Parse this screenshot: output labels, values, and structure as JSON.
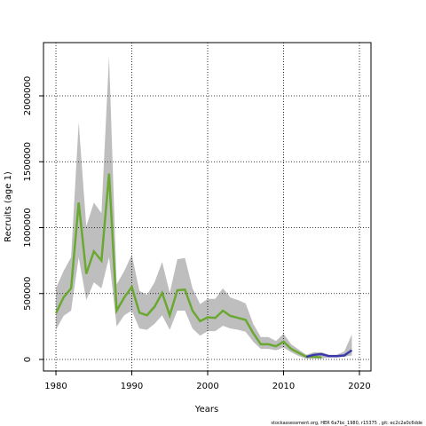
{
  "chart_data": {
    "type": "line",
    "xlabel": "Years",
    "ylabel": "Recruits (age 1)",
    "footnote": "stockassessment.org, HER 6a7bc_1980, r15375 , git: ec2c2a0c6dde",
    "x": [
      1980,
      1981,
      1982,
      1983,
      1984,
      1985,
      1986,
      1987,
      1988,
      1989,
      1990,
      1991,
      1992,
      1993,
      1994,
      1995,
      1996,
      1997,
      1998,
      1999,
      2000,
      2001,
      2002,
      2003,
      2004,
      2005,
      2006,
      2007,
      2008,
      2009,
      2010,
      2011,
      2012,
      2013,
      2014,
      2015,
      2016,
      2017,
      2018,
      2019
    ],
    "band": {
      "color": "#bebebe",
      "upper": [
        540000,
        670000,
        775000,
        1800000,
        1010000,
        1190000,
        1110000,
        2300000,
        570000,
        670000,
        795000,
        520000,
        490000,
        585000,
        740000,
        505000,
        760000,
        770000,
        540000,
        420000,
        460000,
        460000,
        540000,
        470000,
        450000,
        425000,
        270000,
        170000,
        170000,
        140000,
        195000,
        115000,
        75000,
        35000,
        55000,
        55000,
        35000,
        35000,
        60000,
        190000
      ],
      "lower": [
        225000,
        330000,
        370000,
        775000,
        450000,
        585000,
        540000,
        775000,
        250000,
        335000,
        370000,
        235000,
        225000,
        270000,
        335000,
        225000,
        370000,
        370000,
        235000,
        180000,
        215000,
        215000,
        255000,
        235000,
        225000,
        210000,
        135000,
        80000,
        80000,
        70000,
        90000,
        55000,
        25000,
        7000,
        7000,
        7000,
        15000,
        15000,
        20000,
        30000
      ]
    },
    "series": [
      {
        "color": "#6aa832",
        "values": [
          350000,
          470000,
          540000,
          1190000,
          650000,
          820000,
          750000,
          1410000,
          370000,
          470000,
          550000,
          355000,
          335000,
          400000,
          505000,
          335000,
          525000,
          530000,
          370000,
          290000,
          320000,
          315000,
          370000,
          330000,
          315000,
          300000,
          200000,
          115000,
          115000,
          100000,
          135000,
          80000,
          50000,
          20000,
          20000,
          15000,
          null,
          null,
          null,
          null
        ]
      },
      {
        "color": "#3a3aa8",
        "values": [
          null,
          null,
          null,
          null,
          null,
          null,
          null,
          null,
          null,
          null,
          null,
          null,
          null,
          null,
          null,
          null,
          null,
          null,
          null,
          null,
          null,
          null,
          null,
          null,
          null,
          null,
          null,
          null,
          null,
          null,
          null,
          null,
          null,
          20000,
          35000,
          40000,
          25000,
          25000,
          30000,
          70000
        ]
      }
    ],
    "xlim": [
      1978.36,
      2021.52
    ],
    "ylim": [
      -87500,
      2404000
    ],
    "xticks": [
      1980,
      1990,
      2000,
      2010,
      2020
    ],
    "yticks": [
      0,
      500000,
      1000000,
      1500000,
      2000000
    ],
    "grid": true
  }
}
